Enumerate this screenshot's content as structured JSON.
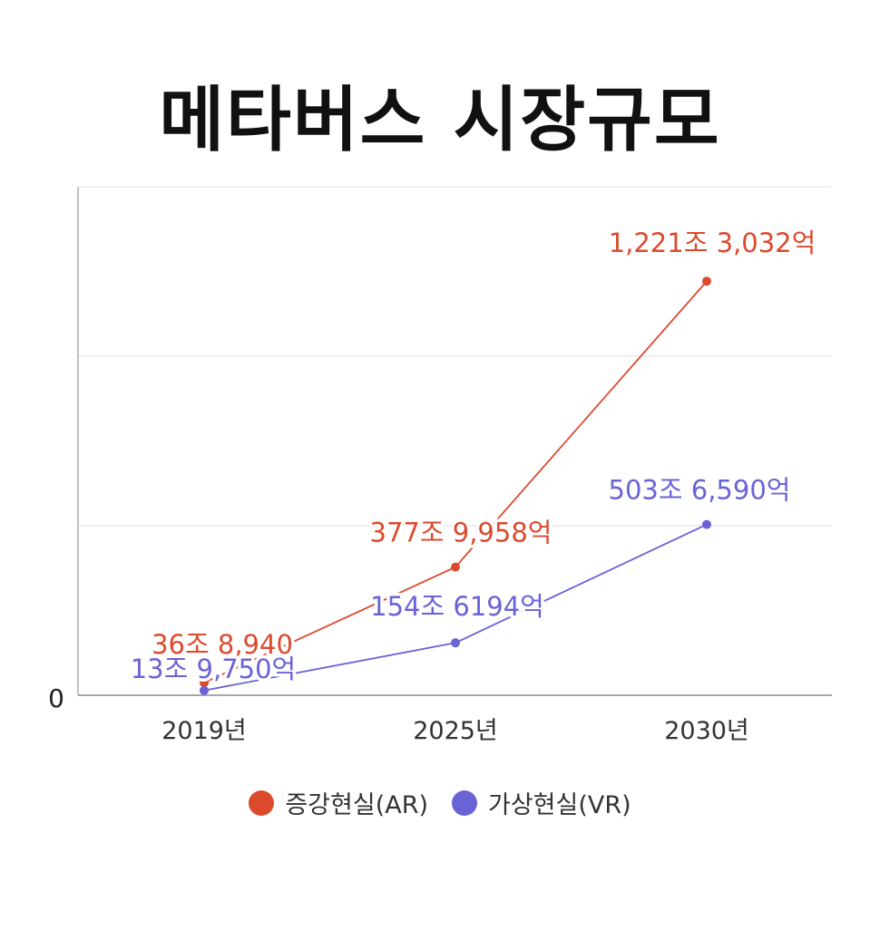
{
  "colors": {
    "ar": "#dc4a2e",
    "vr": "#6a63d6",
    "grid": "#dcdcdc",
    "axis": "#8a8a8a"
  },
  "chart_data": {
    "type": "line",
    "title": "메타버스 시장규모",
    "categories": [
      "2019년",
      "2025년",
      "2030년"
    ],
    "y_tick_labels": [
      "0"
    ],
    "ylim": [
      0,
      15000000
    ],
    "grid": true,
    "legend_position": "bottom",
    "series": [
      {
        "name": "증강현실(AR)",
        "color": "#dc4a2e",
        "values": [
          368940,
          3779958,
          12213032
        ],
        "labels": [
          "36조 8,940",
          "377조 9,958억",
          "1,221조 3,032억"
        ]
      },
      {
        "name": "가상현실(VR)",
        "color": "#6a63d6",
        "values": [
          139750,
          1546194,
          5036590
        ],
        "labels": [
          "13조 9,750억",
          "154조 6194억",
          "503조 6,590억"
        ]
      }
    ]
  }
}
